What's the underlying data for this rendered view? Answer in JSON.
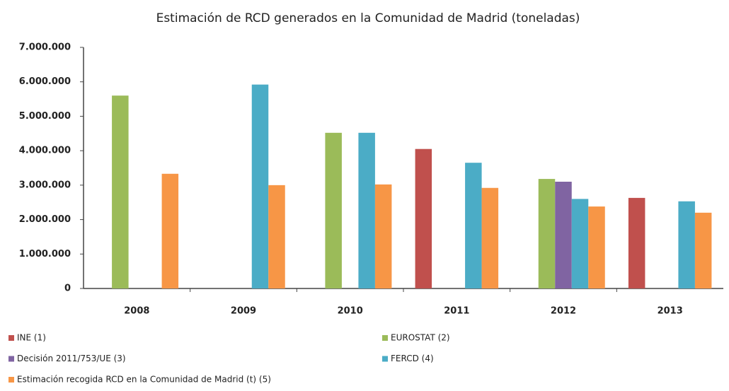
{
  "chart_data": {
    "type": "bar",
    "title": "Estimación de RCD generados en la Comunidad de Madrid (toneladas)",
    "categories": [
      "2008",
      "2009",
      "2010",
      "2011",
      "2012",
      "2013"
    ],
    "series": [
      {
        "name": "INE (1)",
        "color": "#c0504d",
        "values": [
          null,
          null,
          null,
          4050000,
          null,
          2630000
        ]
      },
      {
        "name": "EUROSTAT (2)",
        "color": "#9bbb59",
        "values": [
          5600000,
          null,
          4520000,
          null,
          3180000,
          null
        ]
      },
      {
        "name": "Decisión 2011/753/UE (3)",
        "color": "#8064a2",
        "values": [
          null,
          null,
          null,
          null,
          3100000,
          null
        ]
      },
      {
        "name": "FERCD (4)",
        "color": "#4bacc6",
        "values": [
          null,
          5920000,
          4520000,
          3650000,
          2600000,
          2530000
        ]
      },
      {
        "name": "Estimación recogida RCD en la Comunidad de Madrid (t) (5)",
        "color": "#f79646",
        "values": [
          3330000,
          3000000,
          3020000,
          2920000,
          2380000,
          2200000
        ]
      }
    ],
    "ylim": [
      0,
      7000000
    ],
    "yticks": [
      0,
      {
        "value": 1000000,
        "label": "1.000.000"
      },
      {
        "value": 2000000,
        "label": "2.000.000"
      },
      {
        "value": 3000000,
        "label": "3.000.000"
      },
      {
        "value": 4000000,
        "label": "4.000.000"
      },
      {
        "value": 5000000,
        "label": "5.000.000"
      },
      {
        "value": 6000000,
        "label": "6.000.000"
      },
      {
        "value": 7000000,
        "label": "7.000.000"
      }
    ],
    "grid": false,
    "legend": "bottom"
  }
}
